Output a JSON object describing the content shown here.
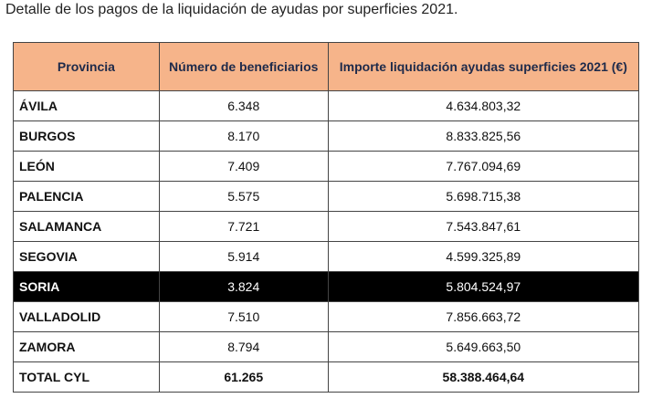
{
  "title": "Detalle de los pagos de la liquidación de ayudas por superficies 2021.",
  "table": {
    "header": [
      "Provincia",
      "Número de beneficiarios",
      "Importe liquidación ayudas superficies 2021 (€)"
    ],
    "rows": [
      [
        "ÁVILA",
        "6.348",
        "4.634.803,32"
      ],
      [
        "BURGOS",
        "8.170",
        "8.833.825,56"
      ],
      [
        "LEÓN",
        "7.409",
        "7.767.094,69"
      ],
      [
        "PALENCIA",
        "5.575",
        "5.698.715,38"
      ],
      [
        "SALAMANCA",
        "7.721",
        "7.543.847,61"
      ],
      [
        "SEGOVIA",
        "5.914",
        "4.599.325,89"
      ],
      [
        "SORIA",
        "3.824",
        "5.804.524,97"
      ],
      [
        "VALLADOLID",
        "7.510",
        "7.856.663,72"
      ],
      [
        "ZAMORA",
        "8.794",
        "5.649.663,50"
      ],
      [
        "TOTAL CYL",
        "61.265",
        "58.388.464,64"
      ]
    ]
  }
}
